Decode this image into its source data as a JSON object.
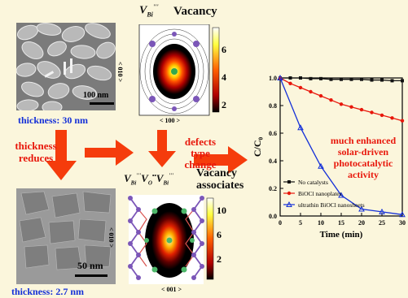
{
  "top_panel": {
    "scale_bar": "100 nm",
    "thickness": "thickness: 30 nm"
  },
  "bottom_panel": {
    "scale_bar": "50 nm",
    "thickness": "thickness: 2.7 nm"
  },
  "arrows": {
    "reduce_line1": "thickness",
    "reduce_line2": "reduces",
    "defects_line1": "defects",
    "defects_line2": "type",
    "defects_line3": "change"
  },
  "vacancy_map": {
    "symbol": "V",
    "sub": "Bi",
    "sup": "'''",
    "title": "Vacancy",
    "y_axis": "< 010 >",
    "x_axis": "< 100 >",
    "colorbar_ticks": [
      "6",
      "4",
      "2"
    ]
  },
  "associate_map": {
    "symbol_line": "V",
    "title_line1": "Vacancy",
    "title_line2": "associates",
    "y_axis": "< 010 >",
    "x_axis": "< 001 >",
    "colorbar_ticks": [
      "10",
      "6",
      "2"
    ]
  },
  "enhanced_text": [
    "much enhanced",
    "solar-driven",
    "photocatalytic",
    "activity"
  ],
  "chart_data": {
    "type": "line",
    "xlabel": "Time (min)",
    "ylabel": "C/C₀",
    "x": [
      0,
      5,
      10,
      15,
      20,
      25,
      30
    ],
    "xlim": [
      0,
      30
    ],
    "ylim": [
      0.0,
      1.0
    ],
    "x_ticks": [
      "0",
      "5",
      "10",
      "15",
      "20",
      "25",
      "30"
    ],
    "y_ticks": [
      "0.0",
      "0.2",
      "0.4",
      "0.6",
      "0.8",
      "1.0"
    ],
    "legend_position": "bottom-left",
    "series": [
      {
        "name": "No catalysts",
        "color": "#111111",
        "marker": "square",
        "x": [
          0,
          2.5,
          5,
          7.5,
          10,
          12.5,
          15,
          17.5,
          20,
          22.5,
          25,
          27.5,
          30
        ],
        "values": [
          1.0,
          1.0,
          1.0,
          0.995,
          0.995,
          0.99,
          0.99,
          0.99,
          0.99,
          0.985,
          0.985,
          0.98,
          0.98
        ]
      },
      {
        "name": "BiOCl nanoplates",
        "color": "#e8180c",
        "marker": "circle",
        "x": [
          0,
          2.5,
          5,
          7.5,
          10,
          12.5,
          15,
          17.5,
          20,
          22.5,
          25,
          27.5,
          30
        ],
        "values": [
          1.0,
          0.96,
          0.93,
          0.9,
          0.87,
          0.84,
          0.81,
          0.79,
          0.77,
          0.75,
          0.73,
          0.71,
          0.69
        ]
      },
      {
        "name": "ultrathin BiOCl nanosheets",
        "color": "#1430d8",
        "marker": "triangle",
        "x": [
          0,
          5,
          10,
          15,
          20,
          25,
          30
        ],
        "values": [
          1.0,
          0.64,
          0.36,
          0.15,
          0.05,
          0.03,
          0.01
        ]
      }
    ]
  }
}
